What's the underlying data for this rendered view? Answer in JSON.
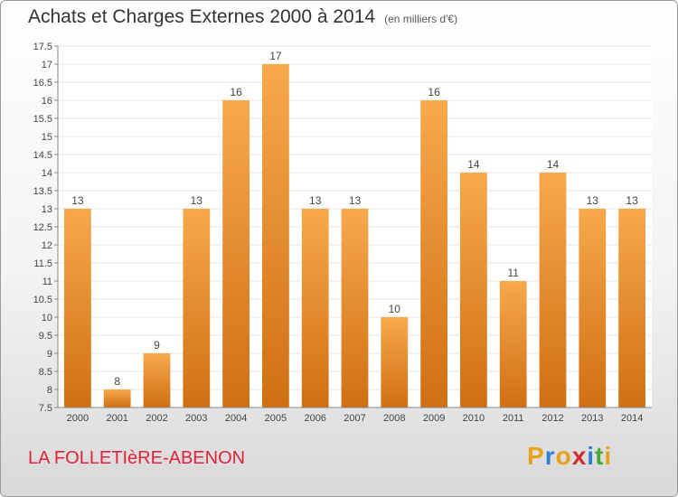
{
  "title": "Achats et Charges Externes 2000 à 2014",
  "unit": "(en milliers d'€)",
  "commune": "LA FOLLETIèRE-ABENON",
  "brand": {
    "letters": [
      "P",
      "r",
      "o",
      "x",
      "i",
      "t",
      "i"
    ],
    "colors": [
      "#e8a21a",
      "#2f7fd8",
      "#e8a21a",
      "#d62b2b",
      "#2f7fd8",
      "#4aa83a",
      "#e8a21a"
    ]
  },
  "colors": {
    "bar_light": "#f7a94c",
    "bar_dark": "#cf6f12",
    "grid": "#e6e6e6",
    "text": "#333333"
  },
  "chart_data": {
    "type": "bar",
    "categories": [
      "2000",
      "2001",
      "2002",
      "2003",
      "2004",
      "2005",
      "2006",
      "2007",
      "2008",
      "2009",
      "2010",
      "2011",
      "2012",
      "2013",
      "2014"
    ],
    "values": [
      13,
      8,
      9,
      13,
      16,
      17,
      13,
      13,
      10,
      16,
      14,
      11,
      14,
      13,
      13
    ],
    "ylim": [
      7.5,
      17.5
    ],
    "yticks": [
      "7.5",
      "8",
      "8.5",
      "9",
      "9.5",
      "10",
      "10.5",
      "11",
      "11.5",
      "12",
      "12.5",
      "13",
      "13.5",
      "14",
      "14.5",
      "15",
      "15.5",
      "16",
      "16.5",
      "17",
      "17.5"
    ],
    "grid": true
  }
}
